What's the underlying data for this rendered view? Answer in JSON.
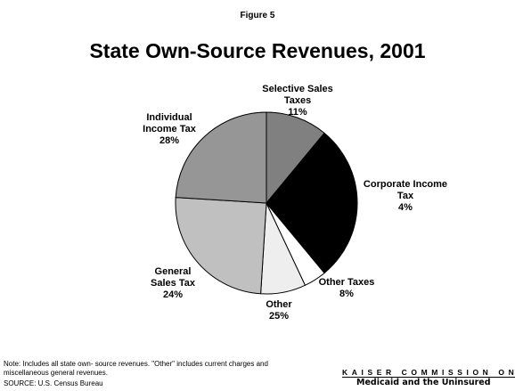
{
  "figure_label": "Figure 5",
  "chart_data": {
    "type": "pie",
    "title": "State Own-Source Revenues, 2001",
    "categories": [
      "Selective Sales Taxes",
      "Individual Income Tax",
      "Corporate Income Tax",
      "Other Taxes",
      "Other",
      "General Sales Tax"
    ],
    "values": [
      11,
      28,
      4,
      8,
      25,
      24
    ],
    "value_labels": [
      "11%",
      "28%",
      "4%",
      "8%",
      "25%",
      "24%"
    ],
    "colors": [
      "#808080",
      "#000000",
      "#ffffff",
      "#eeeeee",
      "#c0c0c0",
      "#969696"
    ]
  },
  "note": "Note: Includes all state own- source revenues.  \"Other\" includes current charges and miscellaneous general revenues.",
  "source": "SOURCE: U.S. Census Bureau",
  "logo": {
    "line1": "KAISER COMMISSION ON",
    "line2": "Medicaid and the Uninsured"
  }
}
